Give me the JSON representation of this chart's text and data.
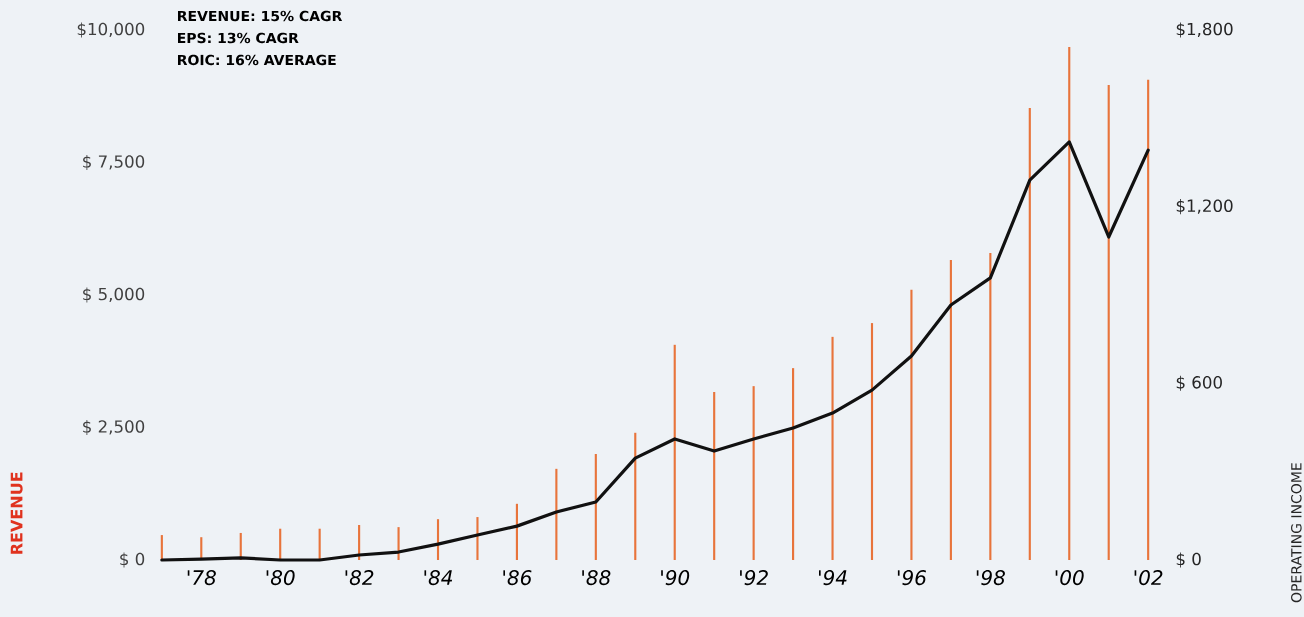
{
  "chart_data": {
    "type": "bar",
    "categories": [
      null,
      "'78",
      null,
      "'80",
      null,
      "'82",
      null,
      "'84",
      null,
      "'86",
      null,
      "'88",
      null,
      "'90",
      null,
      "'92",
      null,
      "'94",
      null,
      "'96",
      null,
      "'98",
      null,
      "'00",
      null,
      "'02"
    ],
    "series": [
      {
        "color": "#e8743b",
        "values": [
          470,
          430,
          510,
          590,
          590,
          660,
          620,
          770,
          810,
          1060,
          1720,
          2000,
          2400,
          4060,
          3170,
          3280,
          3620,
          4210,
          4470,
          5100,
          5660,
          5790,
          8530,
          9680,
          8960,
          9060
        ]
      },
      {
        "type": "line",
        "axis": "y2",
        "color": "#111111",
        "values": [
          0,
          3,
          7,
          0,
          0,
          17,
          27,
          54,
          85,
          115,
          163,
          197,
          346,
          411,
          370,
          411,
          448,
          499,
          577,
          693,
          866,
          958,
          1290,
          1420,
          1097,
          1392
        ]
      }
    ],
    "ylim": [
      0,
      10000
    ],
    "yticks": [
      {
        "value": 0,
        "label": "$ 0"
      },
      {
        "value": 2500,
        "label": "$ 2,500"
      },
      {
        "value": 5000,
        "label": "$ 5,000"
      },
      {
        "value": 7500,
        "label": "$ 7,500"
      },
      {
        "value": 10000,
        "label": "$10,000"
      }
    ],
    "y2lim": [
      0,
      1800
    ],
    "y2ticks": [
      {
        "value": 0,
        "label": "$ 0"
      },
      {
        "value": 600,
        "label": "$ 600"
      },
      {
        "value": 1200,
        "label": "$1,200"
      },
      {
        "value": 1800,
        "label": "$1,800"
      }
    ],
    "ylabel": "REVENUE",
    "y2label": "OPERATING INCOME",
    "annotations": [
      "REVENUE: 15% CAGR",
      "EPS: 13% CAGR",
      "ROIC: 16% AVERAGE"
    ]
  }
}
